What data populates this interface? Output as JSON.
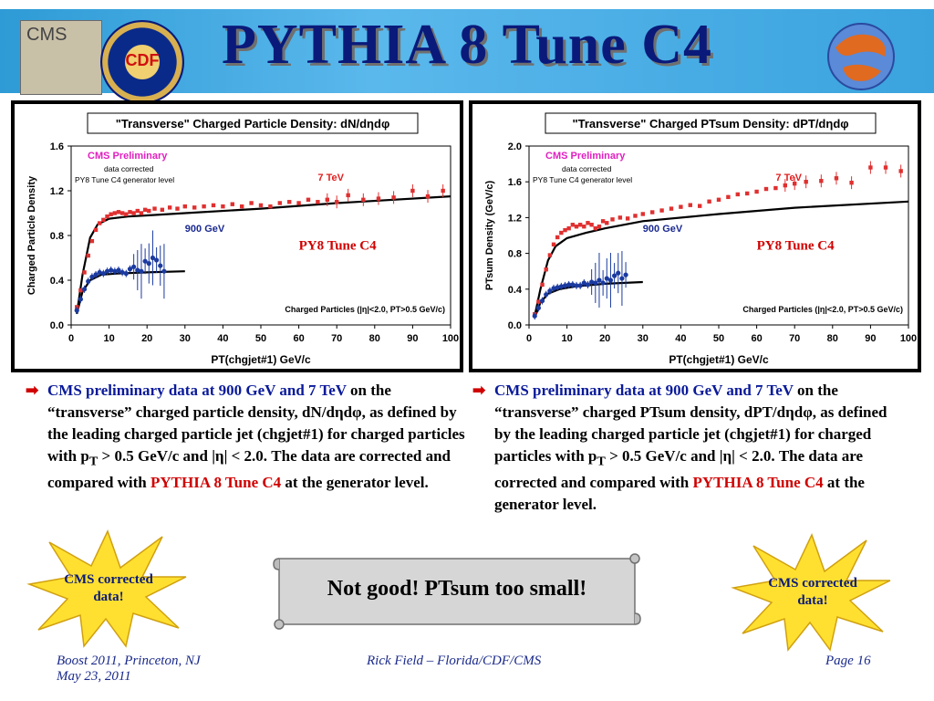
{
  "header": {
    "title": "PYTHIA 8 Tune C4",
    "cms_logo_text": "CMS",
    "cdf_logo_text": "CDF"
  },
  "chart_data": [
    {
      "type": "scatter",
      "title": "\"Transverse\" Charged Particle Density: dN/dηdφ",
      "xlabel": "PT(chgjet#1) GeV/c",
      "ylabel": "Charged Particle Density",
      "xlim": [
        0,
        100
      ],
      "ylim": [
        0.0,
        1.6
      ],
      "xticks": [
        "0",
        "10",
        "20",
        "30",
        "40",
        "50",
        "60",
        "70",
        "80",
        "90",
        "100"
      ],
      "yticks": [
        "0.0",
        "0.4",
        "0.8",
        "1.2",
        "1.6"
      ],
      "annotations": {
        "preliminary": "CMS Preliminary",
        "corrected": "data corrected",
        "generator": "PY8 Tune C4 generator level",
        "e7": "7 TeV",
        "e900": "900 GeV",
        "tune": "PY8 Tune C4",
        "cuts": "Charged Particles (|η|<2.0, PT>0.5 GeV/c)"
      },
      "series": [
        {
          "name": "7 TeV",
          "color": "#e03030",
          "points": [
            [
              1.5,
              0.16
            ],
            [
              2.5,
              0.31
            ],
            [
              3.5,
              0.47
            ],
            [
              4.5,
              0.62
            ],
            [
              5.5,
              0.75
            ],
            [
              6.5,
              0.85
            ],
            [
              7.5,
              0.91
            ],
            [
              8.5,
              0.94
            ],
            [
              9.5,
              0.97
            ],
            [
              10.5,
              0.99
            ],
            [
              11.5,
              1.0
            ],
            [
              12.5,
              1.01
            ],
            [
              13.5,
              1.0
            ],
            [
              14.5,
              0.99
            ],
            [
              15.5,
              1.01
            ],
            [
              16.5,
              1.0
            ],
            [
              17.5,
              1.02
            ],
            [
              18.5,
              1.0
            ],
            [
              19.5,
              1.03
            ],
            [
              20.5,
              1.02
            ],
            [
              22,
              1.04
            ],
            [
              24,
              1.03
            ],
            [
              26,
              1.05
            ],
            [
              28,
              1.04
            ],
            [
              30,
              1.06
            ],
            [
              32.5,
              1.05
            ],
            [
              35,
              1.06
            ],
            [
              37.5,
              1.07
            ],
            [
              40,
              1.06
            ],
            [
              42.5,
              1.08
            ],
            [
              45,
              1.06
            ],
            [
              47.5,
              1.09
            ],
            [
              50,
              1.07
            ],
            [
              52.5,
              1.06
            ],
            [
              55,
              1.09
            ],
            [
              57.5,
              1.1
            ],
            [
              60,
              1.09
            ],
            [
              62.5,
              1.12
            ],
            [
              65,
              1.1
            ],
            [
              67.5,
              1.12
            ],
            [
              70,
              1.1
            ],
            [
              73,
              1.16
            ],
            [
              77,
              1.12
            ],
            [
              81,
              1.13
            ],
            [
              85,
              1.14
            ],
            [
              90,
              1.2
            ],
            [
              94,
              1.15
            ],
            [
              98,
              1.2
            ]
          ]
        },
        {
          "name": "900 GeV",
          "color": "#1a3aa0",
          "points": [
            [
              1.5,
              0.13
            ],
            [
              2.5,
              0.23
            ],
            [
              3.5,
              0.32
            ],
            [
              4.5,
              0.39
            ],
            [
              5.5,
              0.43
            ],
            [
              6.5,
              0.45
            ],
            [
              7.5,
              0.47
            ],
            [
              8.5,
              0.46
            ],
            [
              9.5,
              0.48
            ],
            [
              10.5,
              0.49
            ],
            [
              11.5,
              0.48
            ],
            [
              12.5,
              0.49
            ],
            [
              13.5,
              0.47
            ],
            [
              14.5,
              0.46
            ],
            [
              15.5,
              0.5
            ],
            [
              16.5,
              0.52
            ],
            [
              17.5,
              0.49
            ],
            [
              18.5,
              0.48
            ],
            [
              19.5,
              0.57
            ],
            [
              20.5,
              0.55
            ],
            [
              21.5,
              0.6
            ],
            [
              22.5,
              0.58
            ],
            [
              23.5,
              0.53
            ],
            [
              24.5,
              0.48
            ]
          ]
        }
      ],
      "curves": [
        {
          "name": "PY8 Tune C4 7 TeV",
          "points": [
            [
              1.5,
              0.1
            ],
            [
              3,
              0.45
            ],
            [
              5,
              0.78
            ],
            [
              7,
              0.9
            ],
            [
              10,
              0.95
            ],
            [
              15,
              0.97
            ],
            [
              20,
              0.98
            ],
            [
              30,
              1.0
            ],
            [
              50,
              1.04
            ],
            [
              70,
              1.09
            ],
            [
              100,
              1.15
            ]
          ]
        },
        {
          "name": "PY8 Tune C4 900 GeV",
          "points": [
            [
              1.5,
              0.1
            ],
            [
              3,
              0.3
            ],
            [
              5,
              0.4
            ],
            [
              8,
              0.45
            ],
            [
              12,
              0.46
            ],
            [
              20,
              0.47
            ],
            [
              30,
              0.48
            ]
          ]
        }
      ]
    },
    {
      "type": "scatter",
      "title": "\"Transverse\" Charged PTsum Density: dPT/dηdφ",
      "xlabel": "PT(chgjet#1) GeV/c",
      "ylabel": "PTsum Density  (GeV/c)",
      "xlim": [
        0,
        100
      ],
      "ylim": [
        0.0,
        2.0
      ],
      "xticks": [
        "0",
        "10",
        "20",
        "30",
        "40",
        "50",
        "60",
        "70",
        "80",
        "90",
        "100"
      ],
      "yticks": [
        "0.0",
        "0.4",
        "0.8",
        "1.2",
        "1.6",
        "2.0"
      ],
      "annotations": {
        "preliminary": "CMS Preliminary",
        "corrected": "data corrected",
        "generator": "PY8 Tune C4 generator level",
        "e7": "7 TeV",
        "e900": "900 GeV",
        "tune": "PY8 Tune C4",
        "cuts": "Charged Particles (|η|<2.0, PT>0.5 GeV/c)"
      },
      "series": [
        {
          "name": "7 TeV",
          "color": "#e03030",
          "points": [
            [
              1.5,
              0.12
            ],
            [
              2.5,
              0.26
            ],
            [
              3.5,
              0.45
            ],
            [
              4.5,
              0.62
            ],
            [
              5.5,
              0.78
            ],
            [
              6.5,
              0.9
            ],
            [
              7.5,
              0.98
            ],
            [
              8.5,
              1.03
            ],
            [
              9.5,
              1.06
            ],
            [
              10.5,
              1.08
            ],
            [
              11.5,
              1.12
            ],
            [
              12.5,
              1.1
            ],
            [
              13.5,
              1.12
            ],
            [
              14.5,
              1.1
            ],
            [
              15.5,
              1.14
            ],
            [
              16.5,
              1.12
            ],
            [
              17.5,
              1.08
            ],
            [
              18.5,
              1.1
            ],
            [
              19.5,
              1.16
            ],
            [
              20.5,
              1.14
            ],
            [
              22,
              1.18
            ],
            [
              24,
              1.2
            ],
            [
              26,
              1.19
            ],
            [
              28,
              1.22
            ],
            [
              30,
              1.24
            ],
            [
              32.5,
              1.26
            ],
            [
              35,
              1.28
            ],
            [
              37.5,
              1.3
            ],
            [
              40,
              1.32
            ],
            [
              42.5,
              1.34
            ],
            [
              45,
              1.33
            ],
            [
              47.5,
              1.38
            ],
            [
              50,
              1.4
            ],
            [
              52.5,
              1.43
            ],
            [
              55,
              1.46
            ],
            [
              57.5,
              1.47
            ],
            [
              60,
              1.49
            ],
            [
              62.5,
              1.52
            ],
            [
              65,
              1.53
            ],
            [
              67.5,
              1.56
            ],
            [
              70,
              1.58
            ],
            [
              73,
              1.6
            ],
            [
              77,
              1.61
            ],
            [
              81,
              1.64
            ],
            [
              85,
              1.59
            ],
            [
              90,
              1.76
            ],
            [
              94,
              1.76
            ],
            [
              98,
              1.72
            ]
          ]
        },
        {
          "name": "900 GeV",
          "color": "#1a3aa0",
          "points": [
            [
              1.5,
              0.1
            ],
            [
              2.5,
              0.19
            ],
            [
              3.5,
              0.27
            ],
            [
              4.5,
              0.34
            ],
            [
              5.5,
              0.38
            ],
            [
              6.5,
              0.41
            ],
            [
              7.5,
              0.42
            ],
            [
              8.5,
              0.43
            ],
            [
              9.5,
              0.44
            ],
            [
              10.5,
              0.45
            ],
            [
              11.5,
              0.45
            ],
            [
              12.5,
              0.44
            ],
            [
              13.5,
              0.44
            ],
            [
              14.5,
              0.47
            ],
            [
              15.5,
              0.45
            ],
            [
              16.5,
              0.48
            ],
            [
              17.5,
              0.47
            ],
            [
              18.5,
              0.5
            ],
            [
              19.5,
              0.47
            ],
            [
              20.5,
              0.52
            ],
            [
              21.5,
              0.5
            ],
            [
              22.5,
              0.55
            ],
            [
              23.5,
              0.58
            ],
            [
              24.5,
              0.52
            ],
            [
              25.5,
              0.56
            ]
          ]
        }
      ],
      "curves": [
        {
          "name": "PY8 Tune C4 7 TeV",
          "points": [
            [
              1.5,
              0.1
            ],
            [
              3,
              0.4
            ],
            [
              5,
              0.72
            ],
            [
              7,
              0.88
            ],
            [
              10,
              0.97
            ],
            [
              15,
              1.03
            ],
            [
              20,
              1.08
            ],
            [
              30,
              1.16
            ],
            [
              50,
              1.24
            ],
            [
              70,
              1.31
            ],
            [
              100,
              1.38
            ]
          ]
        },
        {
          "name": "PY8 Tune C4 900 GeV",
          "points": [
            [
              1.5,
              0.08
            ],
            [
              3,
              0.25
            ],
            [
              5,
              0.35
            ],
            [
              8,
              0.4
            ],
            [
              12,
              0.43
            ],
            [
              20,
              0.46
            ],
            [
              30,
              0.48
            ]
          ]
        }
      ]
    }
  ],
  "bullets": [
    {
      "lead": "CMS preliminary data at  900 GeV and 7 TeV",
      "body1": "on the “transverse” charged particle density, dN/dηdφ, as defined by the leading charged particle jet (chgjet#1) for charged particles with p",
      "sub": "T",
      "body2": " > 0.5 GeV/c and |η| < 2.0.  The data are corrected and compared with ",
      "highlight": "PYTHIA 8 Tune C4",
      "tail": " at the generator level."
    },
    {
      "lead": "CMS preliminary data at  900 GeV and 7 TeV",
      "body1": "on the “transverse” charged PTsum density, dPT/dηdφ, as defined by the leading charged particle jet (chgjet#1) for charged particles with p",
      "sub": "T",
      "body2": " > 0.5 GeV/c and |η| < 2.0.  The data are corrected and compared with ",
      "highlight": "PYTHIA 8 Tune C4",
      "tail": " at the generator level."
    }
  ],
  "callouts": {
    "star_left": "CMS corrected data!",
    "star_right": "CMS corrected data!",
    "scroll": "Not good!  PTsum too small!"
  },
  "footer": {
    "left_line1": "Boost 2011, Princeton, NJ",
    "left_line2": "May 23, 2011",
    "center": "Rick Field – Florida/CDF/CMS",
    "right": "Page 16"
  },
  "colors": {
    "title": "#0a1a7a",
    "band": "#3aa3de",
    "accent_red": "#d00000",
    "accent_blue": "#0a1a9a",
    "star_fill": "#ffe030"
  }
}
